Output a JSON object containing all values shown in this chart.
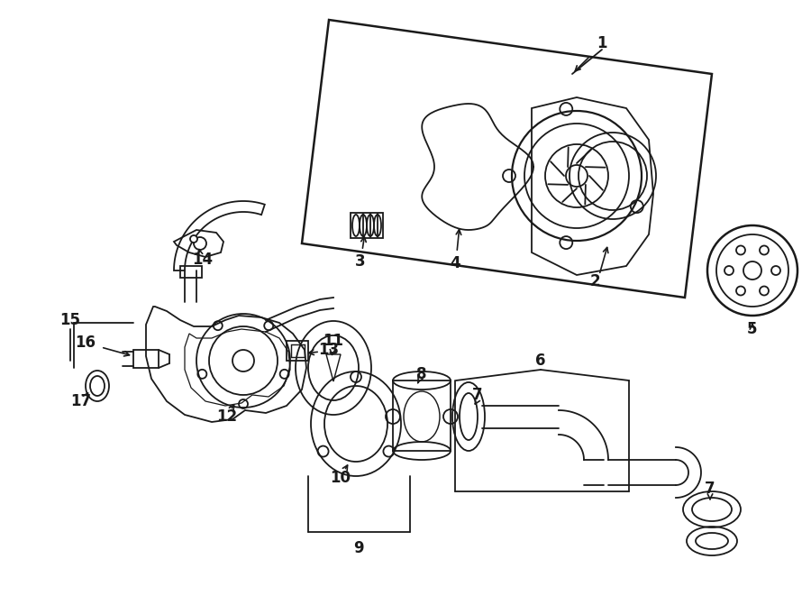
{
  "bg_color": "#ffffff",
  "line_color": "#1a1a1a",
  "lw": 1.3,
  "fig_width": 9.0,
  "fig_height": 6.61,
  "dpi": 100
}
